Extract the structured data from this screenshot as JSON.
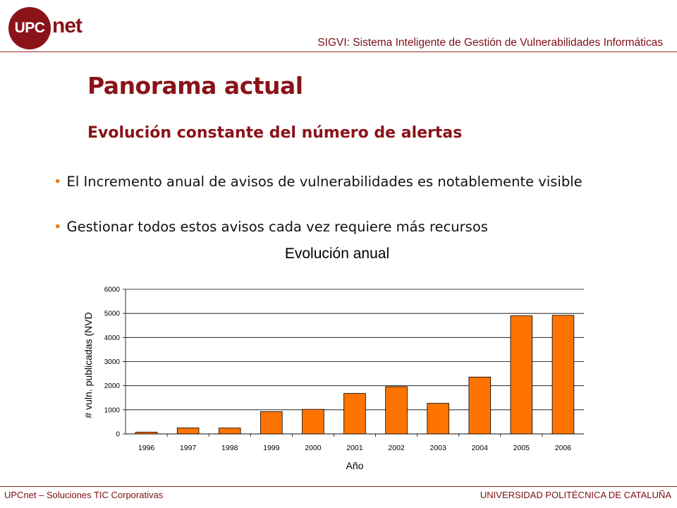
{
  "header": {
    "logo_left": "UPC",
    "logo_right": "net",
    "title": "SIGVI: Sistema Inteligente de Gestión de Vulnerabilidades Informáticas"
  },
  "slide": {
    "title": "Panorama actual",
    "subtitle": "Evolución constante del número de alertas",
    "bullets": [
      "El Incremento anual de avisos de vulnerabilidades es notablemente visible",
      "Gestionar todos estos avisos cada vez requiere más recursos"
    ]
  },
  "chart_data": {
    "type": "bar",
    "title": "Evolución anual",
    "xlabel": "Año",
    "ylabel": "# vuln. publicadas (NVD",
    "categories": [
      "1996",
      "1997",
      "1998",
      "1999",
      "2000",
      "2001",
      "2002",
      "2003",
      "2004",
      "2005",
      "2006"
    ],
    "values": [
      75,
      250,
      245,
      925,
      1020,
      1680,
      1960,
      1270,
      2360,
      4900,
      4920
    ],
    "ylim": [
      0,
      6000
    ],
    "yticks": [
      0,
      1000,
      2000,
      3000,
      4000,
      5000,
      6000
    ],
    "grid": true,
    "legend": "none",
    "bar_color": "#ff7300"
  },
  "footer": {
    "left": "UPCnet – Soluciones TIC Corporativas",
    "right": "UNIVERSIDAD POLITÉCNICA DE CATALUÑA"
  },
  "colors": {
    "brand": "#8a1219",
    "bullet": "#e87a1a"
  }
}
